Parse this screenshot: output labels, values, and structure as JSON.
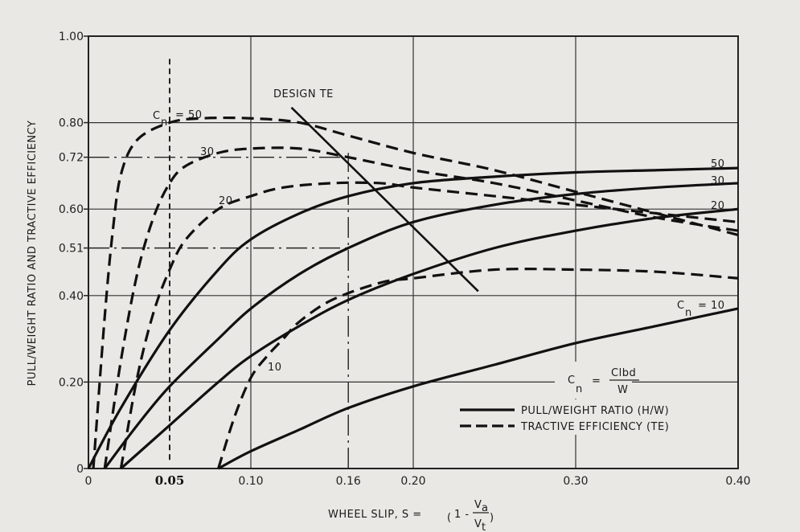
{
  "chart_data": {
    "type": "line",
    "title": "",
    "xlabel": "WHEEL SLIP, S = (1 - Va/Vt)",
    "ylabel": "PULL/WEIGHT RATIO AND TRACTIVE EFFICIENCY",
    "xlim": [
      0,
      0.4
    ],
    "ylim": [
      0,
      1.0
    ],
    "x_ticks": [
      "0",
      "0.05",
      "0.10",
      "0.16",
      "0.20",
      "0.30",
      "0.40"
    ],
    "y_ticks": [
      "0",
      "0.20",
      "0.40",
      "0.51",
      "0.60",
      "0.72",
      "0.80",
      "1.00"
    ],
    "grid": true,
    "legend": [
      {
        "label": "PULL/WEIGHT RATIO (H/W)",
        "style": "solid"
      },
      {
        "label": "TRACTIVE EFFICIENCY (TE)",
        "style": "dashed"
      }
    ],
    "formula": {
      "lhs": "C",
      "lhs_sub": "n",
      "eq": "=",
      "num": "Clbd",
      "den": "W"
    },
    "annotations": [
      {
        "text": "DESIGN TE",
        "x": 0.115,
        "y": 0.86
      },
      {
        "text": "C",
        "sub": "n",
        "suffix": "= 50",
        "x": 0.04,
        "y": 0.81
      },
      {
        "text": "30",
        "x": 0.07,
        "y": 0.73
      },
      {
        "text": "20",
        "x": 0.08,
        "y": 0.61
      },
      {
        "text": "10",
        "x": 0.11,
        "y": 0.23
      },
      {
        "text": "50",
        "x": 0.385,
        "y": 0.7
      },
      {
        "text": "30",
        "x": 0.385,
        "y": 0.67
      },
      {
        "text": "20",
        "x": 0.385,
        "y": 0.61
      },
      {
        "text": "C",
        "sub": "n",
        "suffix": "= 10",
        "x": 0.36,
        "y": 0.37
      }
    ],
    "series": [
      {
        "name": "TE Cn=50",
        "style": "dashed",
        "x": [
          0.003,
          0.01,
          0.015,
          0.02,
          0.03,
          0.05,
          0.07,
          0.1,
          0.13,
          0.16,
          0.2,
          0.25,
          0.3,
          0.35,
          0.4
        ],
        "y": [
          0.0,
          0.35,
          0.55,
          0.68,
          0.76,
          0.8,
          0.81,
          0.81,
          0.8,
          0.77,
          0.73,
          0.69,
          0.64,
          0.59,
          0.54
        ]
      },
      {
        "name": "TE Cn=30",
        "style": "dashed",
        "x": [
          0.01,
          0.02,
          0.03,
          0.04,
          0.05,
          0.06,
          0.08,
          0.1,
          0.13,
          0.16,
          0.2,
          0.25,
          0.3,
          0.35,
          0.4
        ],
        "y": [
          0.0,
          0.25,
          0.45,
          0.58,
          0.66,
          0.7,
          0.73,
          0.74,
          0.74,
          0.72,
          0.69,
          0.66,
          0.62,
          0.58,
          0.55
        ]
      },
      {
        "name": "TE Cn=20",
        "style": "dashed",
        "x": [
          0.02,
          0.03,
          0.04,
          0.05,
          0.06,
          0.08,
          0.1,
          0.12,
          0.15,
          0.18,
          0.2,
          0.25,
          0.3,
          0.35,
          0.4
        ],
        "y": [
          0.0,
          0.21,
          0.36,
          0.46,
          0.53,
          0.6,
          0.63,
          0.65,
          0.66,
          0.66,
          0.65,
          0.63,
          0.61,
          0.59,
          0.57
        ]
      },
      {
        "name": "TE Cn=10",
        "style": "dashed",
        "x": [
          0.08,
          0.09,
          0.1,
          0.11,
          0.12,
          0.13,
          0.15,
          0.18,
          0.2,
          0.25,
          0.3,
          0.35,
          0.4
        ],
        "y": [
          0.0,
          0.12,
          0.21,
          0.26,
          0.3,
          0.34,
          0.39,
          0.43,
          0.44,
          0.46,
          0.46,
          0.455,
          0.44
        ]
      },
      {
        "name": "P/W Cn=50",
        "style": "solid",
        "x": [
          0.0,
          0.02,
          0.05,
          0.08,
          0.1,
          0.13,
          0.16,
          0.2,
          0.25,
          0.3,
          0.35,
          0.4
        ],
        "y": [
          0.0,
          0.14,
          0.32,
          0.46,
          0.53,
          0.59,
          0.63,
          0.66,
          0.675,
          0.685,
          0.69,
          0.695
        ]
      },
      {
        "name": "P/W Cn=30",
        "style": "solid",
        "x": [
          0.01,
          0.03,
          0.05,
          0.08,
          0.1,
          0.13,
          0.16,
          0.2,
          0.25,
          0.3,
          0.35,
          0.4
        ],
        "y": [
          0.0,
          0.1,
          0.19,
          0.3,
          0.37,
          0.45,
          0.51,
          0.57,
          0.61,
          0.635,
          0.65,
          0.66
        ]
      },
      {
        "name": "P/W Cn=20",
        "style": "solid",
        "x": [
          0.02,
          0.05,
          0.08,
          0.1,
          0.13,
          0.16,
          0.2,
          0.25,
          0.3,
          0.35,
          0.4
        ],
        "y": [
          0.0,
          0.1,
          0.2,
          0.26,
          0.33,
          0.39,
          0.45,
          0.51,
          0.55,
          0.58,
          0.6
        ]
      },
      {
        "name": "P/W Cn=10",
        "style": "solid",
        "x": [
          0.08,
          0.1,
          0.13,
          0.16,
          0.2,
          0.25,
          0.3,
          0.35,
          0.4
        ],
        "y": [
          0.0,
          0.04,
          0.09,
          0.14,
          0.19,
          0.24,
          0.29,
          0.33,
          0.37
        ]
      },
      {
        "name": "DESIGN TE",
        "style": "solid",
        "x": [
          0.125,
          0.24
        ],
        "y": [
          0.835,
          0.41
        ]
      }
    ],
    "reference_lines": [
      {
        "type": "vertical",
        "x": 0.05,
        "style": "dashed",
        "y_range": [
          0.02,
          0.95
        ]
      },
      {
        "type": "vertical",
        "x": 0.16,
        "style": "dashdot",
        "y_range": [
          0,
          0.73
        ]
      },
      {
        "type": "horizontal",
        "y": 0.72,
        "style": "dashdot",
        "x_range": [
          0,
          0.16
        ]
      },
      {
        "type": "horizontal",
        "y": 0.51,
        "style": "dashdot",
        "x_range": [
          0,
          0.16
        ]
      }
    ]
  },
  "labels": {
    "y_axis": "PULL/WEIGHT RATIO AND TRACTIVE EFFICIENCY",
    "x_axis_prefix": "WHEEL SLIP, S =",
    "x_axis_one": "1 -",
    "x_axis_num": "V",
    "x_axis_num_sub": "a",
    "x_axis_den": "V",
    "x_axis_den_sub": "t",
    "design_te": "DESIGN TE",
    "legend_solid": "PULL/WEIGHT RATIO (H/W)",
    "legend_dashed": "TRACTIVE EFFICIENCY (TE)",
    "formula_c": "C",
    "formula_n": "n",
    "formula_eq": "=",
    "formula_num": "Clbd",
    "formula_den": "W",
    "cn50_prefix_c": "C",
    "cn50_prefix_n": "n",
    "cn50_text": "= 50",
    "te30": "30",
    "te20": "20",
    "te10": "10",
    "pw50": "50",
    "pw30": "30",
    "pw20": "20",
    "cn10_c": "C",
    "cn10_n": "n",
    "cn10_text": "= 10"
  }
}
